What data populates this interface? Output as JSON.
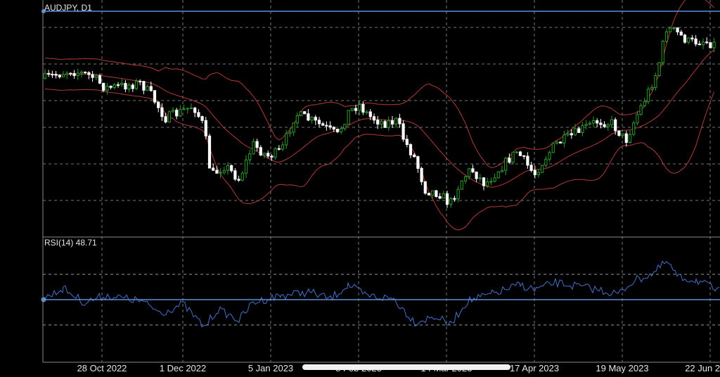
{
  "chart_data": [
    {
      "type": "candlestick",
      "title": "AUDJPY, D1",
      "overlays": [
        "bollinger-upper",
        "bollinger-middle",
        "bollinger-lower"
      ],
      "x_ticks": [
        "28 Oct 2022",
        "1 Dec 2022",
        "5 Jan 2023",
        "8 Feb 2023",
        "14 Mar 2023",
        "17 Apr 2023",
        "19 May 2023",
        "22 Jun 2023"
      ],
      "grid": true,
      "colors": {
        "bull": "#2e9a2e",
        "bear": "#ffffff",
        "bands": "#b33a3a",
        "hline": "#5c8fd6",
        "grid": "#777777"
      }
    },
    {
      "type": "line",
      "title": "RSI(14) 48.71",
      "levels": [
        70,
        50,
        30
      ],
      "ylim": [
        0,
        100
      ],
      "colors": {
        "line": "#4a6fc8",
        "level": "#5c8fd6"
      }
    }
  ],
  "home_indicator": true
}
